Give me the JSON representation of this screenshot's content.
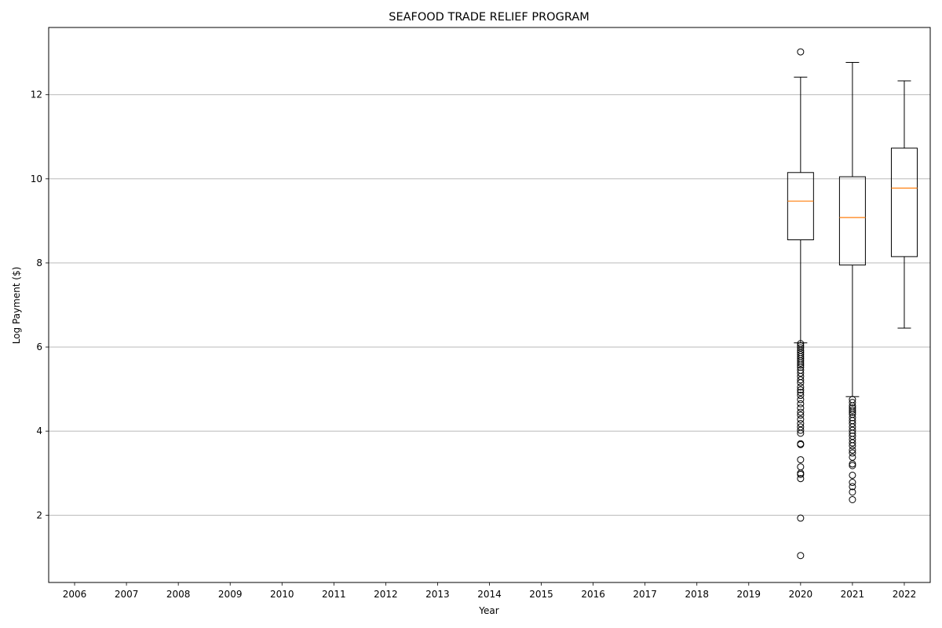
{
  "chart_data": {
    "type": "box",
    "title": "SEAFOOD TRADE RELIEF PROGRAM",
    "xlabel": "Year",
    "ylabel": "Log Payment ($)",
    "categories": [
      "2006",
      "2007",
      "2008",
      "2009",
      "2010",
      "2011",
      "2012",
      "2013",
      "2014",
      "2015",
      "2016",
      "2017",
      "2018",
      "2019",
      "2020",
      "2021",
      "2022"
    ],
    "ylim": [
      0.4,
      13.6
    ],
    "yticks": [
      2,
      4,
      6,
      8,
      10,
      12
    ],
    "grid": "y",
    "colors": {
      "box": "#000000",
      "median": "#ff7f0e",
      "grid": "#b0b0b0"
    },
    "boxes": [
      {
        "category": "2020",
        "whisker_low": 6.1,
        "q1": 8.55,
        "median": 9.47,
        "q3": 10.15,
        "whisker_high": 12.42,
        "outliers": [
          13.02,
          6.08,
          6.03,
          5.98,
          5.92,
          5.87,
          5.82,
          5.77,
          5.72,
          5.67,
          5.62,
          5.57,
          5.52,
          5.45,
          5.38,
          5.3,
          5.22,
          5.15,
          5.05,
          4.98,
          4.92,
          4.85,
          4.75,
          4.65,
          4.55,
          4.45,
          4.38,
          4.28,
          4.18,
          4.1,
          4.02,
          3.95,
          3.7,
          3.68,
          3.32,
          3.15,
          3.0,
          2.97,
          2.87,
          1.93,
          1.04
        ]
      },
      {
        "category": "2021",
        "whisker_low": 4.82,
        "q1": 7.95,
        "median": 9.08,
        "q3": 10.05,
        "whisker_high": 12.77,
        "outliers": [
          4.75,
          4.68,
          4.6,
          4.55,
          4.5,
          4.45,
          4.4,
          4.32,
          4.25,
          4.18,
          4.1,
          4.02,
          3.95,
          3.88,
          3.8,
          3.72,
          3.65,
          3.55,
          3.48,
          3.38,
          3.22,
          3.18,
          2.95,
          2.78,
          2.68,
          2.55,
          2.37
        ]
      },
      {
        "category": "2022",
        "whisker_low": 6.45,
        "q1": 8.15,
        "median": 9.78,
        "q3": 10.73,
        "whisker_high": 12.33,
        "outliers": []
      }
    ]
  }
}
